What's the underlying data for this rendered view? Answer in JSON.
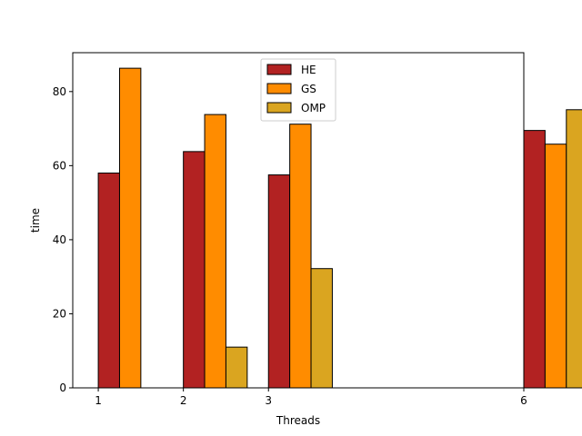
{
  "chart_data": {
    "type": "bar",
    "xlabel": "Threads",
    "ylabel": "time",
    "x": [
      1,
      2,
      3,
      6
    ],
    "x_ticks": [
      1,
      2,
      3,
      6
    ],
    "y_ticks": [
      0,
      20,
      40,
      60,
      80
    ],
    "xlim": [
      0.7,
      6.0
    ],
    "ylim": [
      0,
      90.5
    ],
    "legend_position": "top-center",
    "series": [
      {
        "name": "HE",
        "color": "#b22222",
        "values": [
          58.0,
          63.8,
          57.5,
          69.5
        ]
      },
      {
        "name": "GS",
        "color": "#ff8c00",
        "values": [
          86.3,
          73.8,
          71.2,
          65.8
        ]
      },
      {
        "name": "OMP",
        "color": "#daa520",
        "values": [
          0.0,
          11.0,
          32.2,
          75.1
        ]
      }
    ]
  }
}
